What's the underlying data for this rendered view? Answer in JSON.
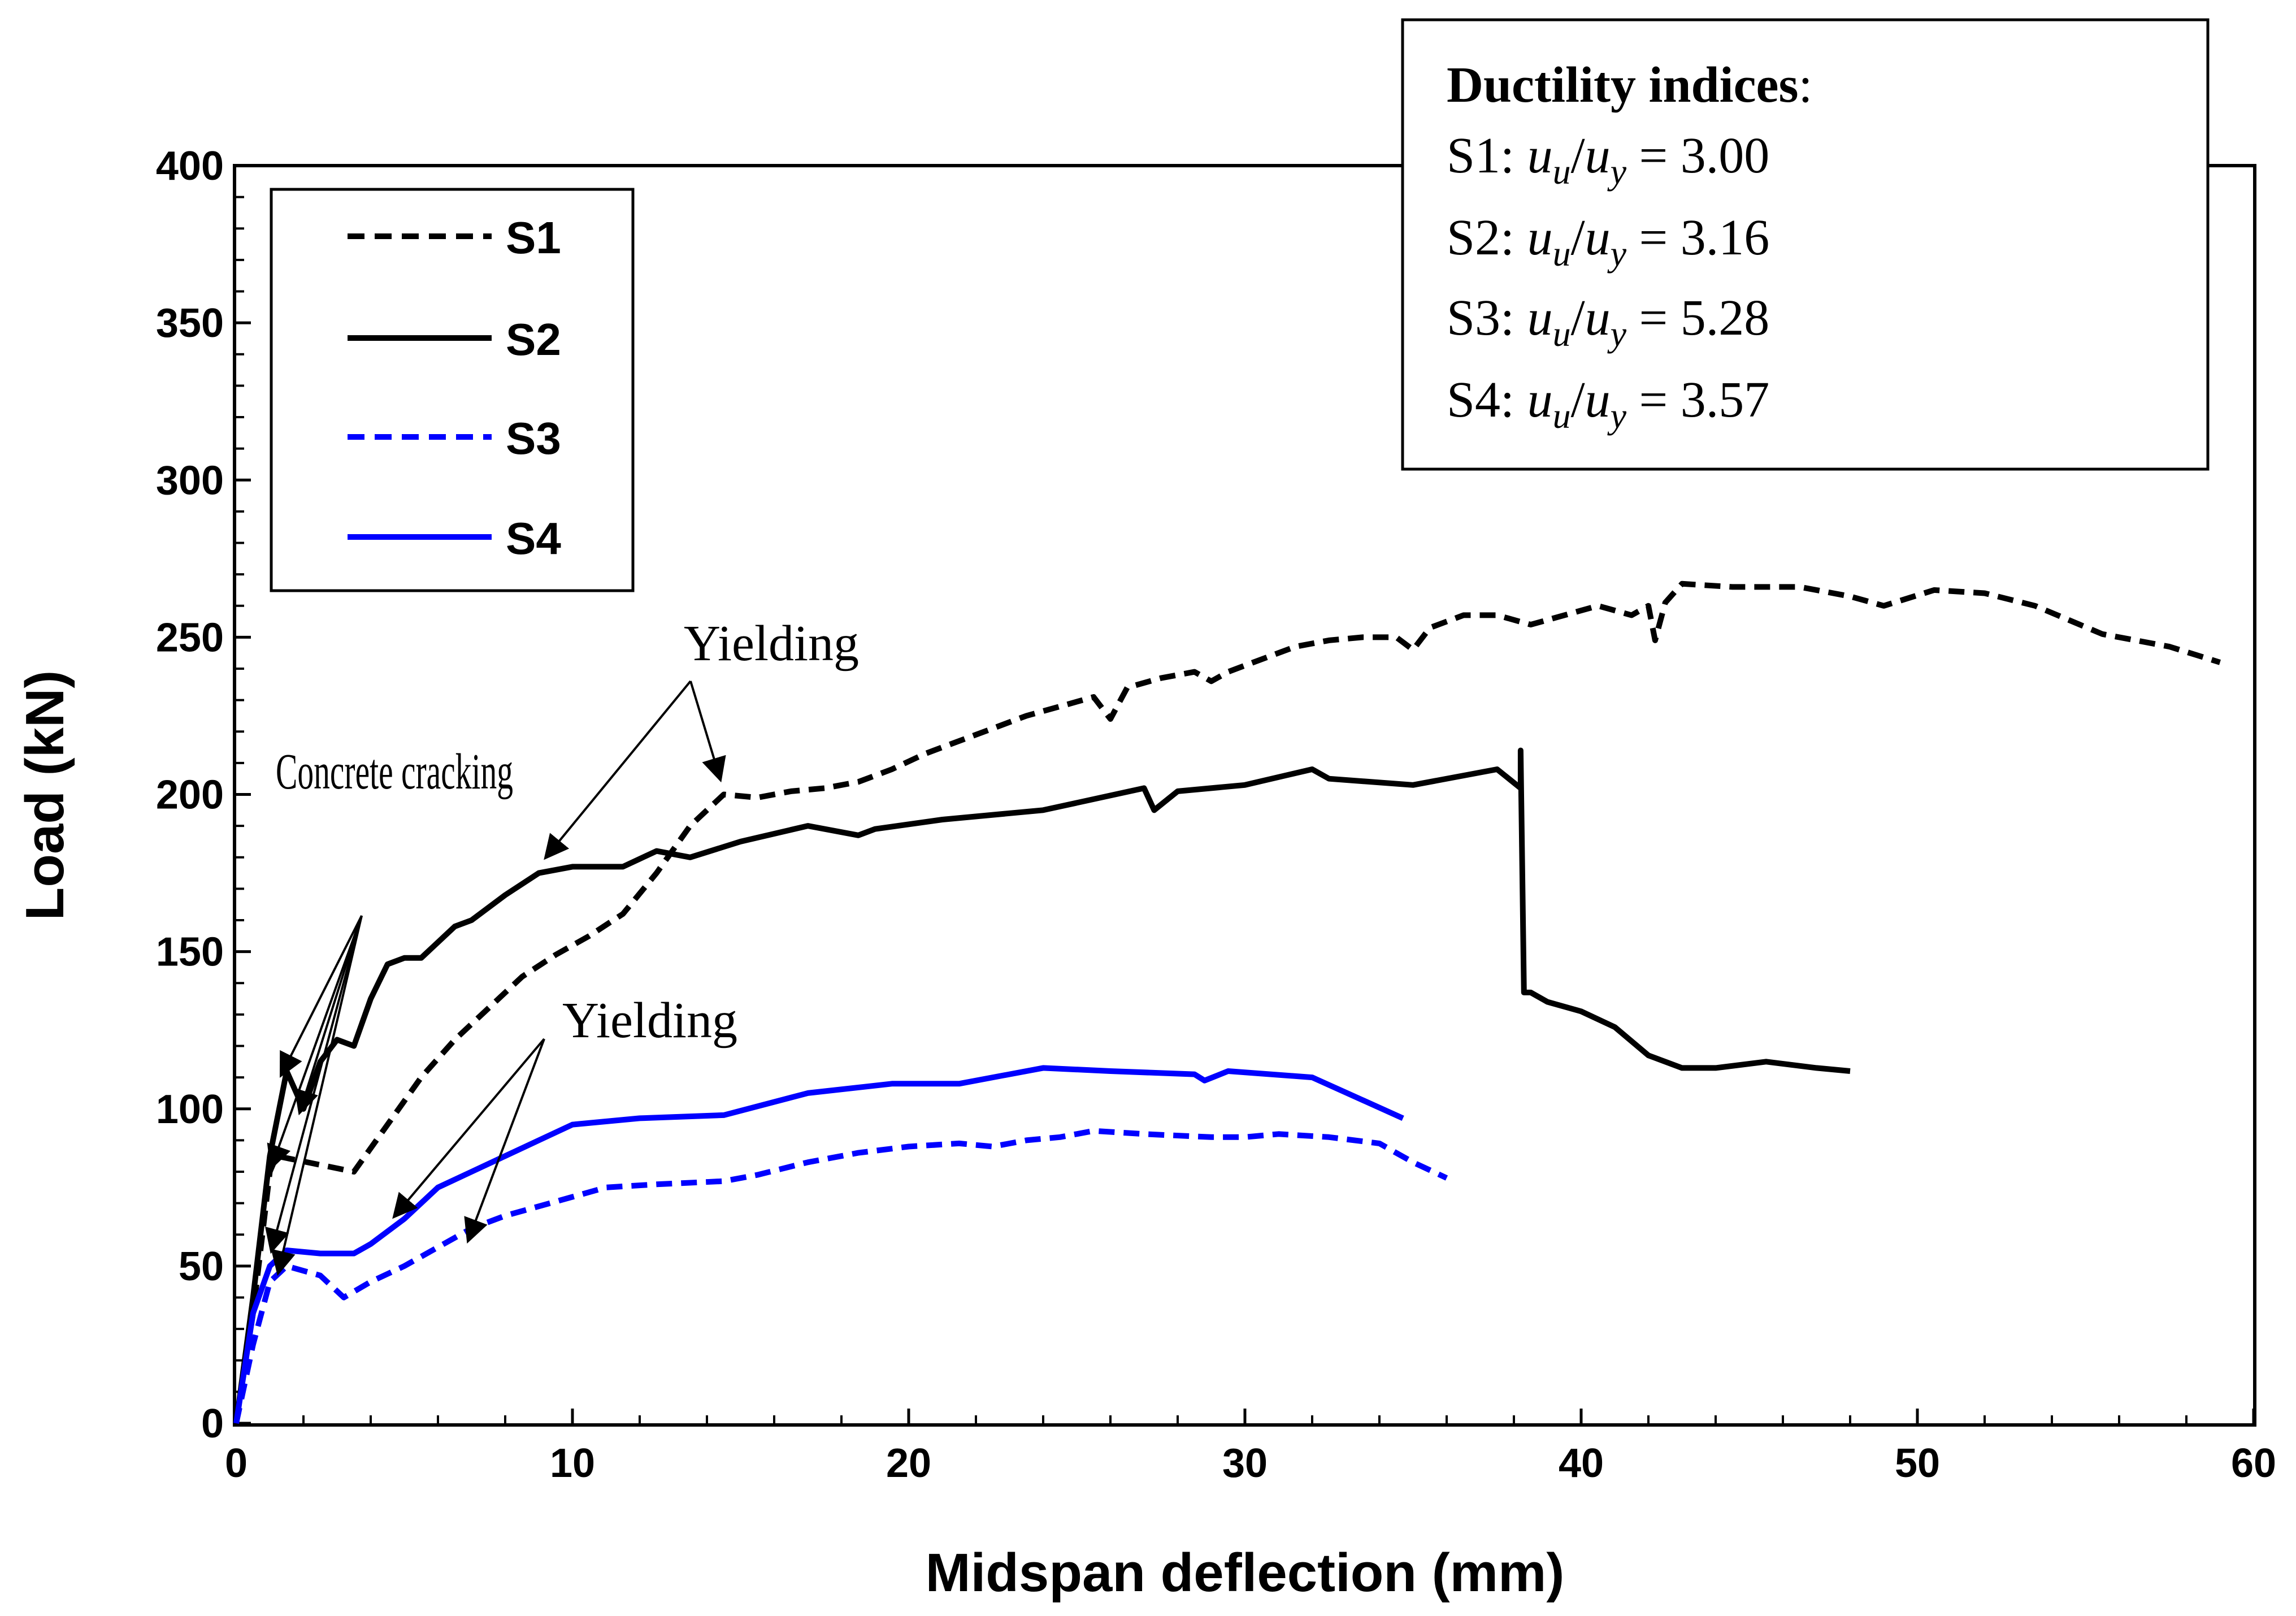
{
  "chart_data": {
    "type": "line",
    "title": "",
    "xlabel": "Midspan deflection (mm)",
    "ylabel": "Load (kN)",
    "xlim": [
      0,
      60
    ],
    "ylim": [
      0,
      400
    ],
    "xticks": [
      0,
      10,
      20,
      30,
      40,
      50,
      60
    ],
    "yticks": [
      0,
      50,
      100,
      150,
      200,
      250,
      300,
      350,
      400
    ],
    "grid": false,
    "legend_position": "top-left",
    "series": [
      {
        "name": "S1",
        "color": "#000000",
        "dashed": true,
        "x": [
          0,
          0.5,
          1.0,
          1.2,
          3.5,
          4.5,
          5.5,
          6.5,
          7.5,
          8.5,
          9.5,
          10.5,
          11.5,
          12.5,
          13.5,
          14.5,
          15.5,
          16.5,
          17.5,
          18.5,
          19.5,
          20.5,
          21.5,
          22.5,
          23.5,
          24.5,
          25.5,
          26.0,
          26.5,
          27.5,
          28.5,
          29.0,
          29.5,
          30.5,
          31.5,
          32.5,
          33.5,
          34.5,
          35.0,
          35.5,
          36.5,
          37.5,
          38.5,
          39.5,
          40.5,
          41.5,
          42.0,
          42.2,
          42.5,
          43.0,
          44.5,
          46.5,
          48.0,
          49.0,
          50.5,
          52.0,
          53.5,
          55.5,
          57.5,
          59.0
        ],
        "y": [
          0,
          35,
          80,
          85,
          80,
          95,
          110,
          122,
          132,
          142,
          149,
          155,
          162,
          175,
          190,
          200,
          199,
          201,
          202,
          204,
          208,
          213,
          217,
          221,
          225,
          228,
          231,
          224,
          234,
          237,
          239,
          236,
          239,
          243,
          247,
          249,
          250,
          250,
          246,
          253,
          257,
          257,
          254,
          257,
          260,
          257,
          260,
          249,
          261,
          267,
          266,
          266,
          263,
          260,
          265,
          264,
          260,
          251,
          247,
          242
        ]
      },
      {
        "name": "S2",
        "color": "#000000",
        "dashed": false,
        "x": [
          0,
          0.5,
          1.0,
          1.5,
          2.0,
          2.5,
          3.0,
          3.5,
          4.0,
          4.5,
          5.0,
          5.5,
          6.5,
          7.0,
          8.0,
          9.0,
          10.0,
          11.5,
          12.5,
          13.5,
          15.0,
          17.0,
          18.5,
          19.0,
          21.0,
          24.0,
          27.0,
          27.3,
          28.0,
          30.0,
          32.0,
          32.5,
          35.0,
          37.5,
          38.2,
          38.2,
          38.3,
          38.5,
          39.0,
          40.0,
          41.0,
          42.0,
          43.0,
          44.0,
          45.5,
          47.0,
          48.0
        ],
        "y": [
          0,
          40,
          85,
          112,
          100,
          115,
          122,
          120,
          135,
          146,
          148,
          148,
          158,
          160,
          168,
          175,
          177,
          177,
          182,
          180,
          185,
          190,
          187,
          189,
          192,
          195,
          202,
          195,
          201,
          203,
          208,
          205,
          203,
          208,
          202,
          214,
          137,
          137,
          134,
          131,
          126,
          117,
          113,
          113,
          115,
          113,
          112
        ]
      },
      {
        "name": "S3",
        "color": "#0000FF",
        "dashed": true,
        "x": [
          0,
          0.5,
          1.0,
          1.5,
          2.5,
          3.2,
          4.0,
          5.0,
          6.0,
          7.0,
          8.0,
          9.0,
          10.0,
          11.0,
          12.5,
          14.5,
          15.5,
          17.0,
          18.5,
          20.0,
          21.5,
          22.5,
          23.5,
          24.5,
          25.5,
          27.0,
          29.0,
          30.0,
          31.0,
          32.5,
          34.0,
          35.0,
          36.0
        ],
        "y": [
          0,
          25,
          45,
          50,
          47,
          40,
          45,
          50,
          56,
          62,
          66,
          69,
          72,
          75,
          76,
          77,
          79,
          83,
          86,
          88,
          89,
          88,
          90,
          91,
          93,
          92,
          91,
          91,
          92,
          91,
          89,
          83,
          78
        ]
      },
      {
        "name": "S4",
        "color": "#0000FF",
        "dashed": false,
        "x": [
          0,
          0.5,
          1.0,
          1.5,
          2.5,
          3.5,
          4.0,
          5.0,
          6.0,
          7.0,
          8.0,
          9.0,
          10.0,
          12.0,
          14.5,
          17.0,
          19.5,
          21.5,
          24.0,
          26.0,
          28.5,
          28.8,
          29.5,
          32.0,
          34.7
        ],
        "y": [
          0,
          35,
          50,
          55,
          54,
          54,
          57,
          65,
          75,
          80,
          85,
          90,
          95,
          97,
          98,
          105,
          108,
          108,
          113,
          112,
          111,
          109,
          112,
          110,
          97
        ]
      }
    ],
    "annotations": {
      "cracking": "Concrete cracking",
      "yielding_upper": "Yielding",
      "yielding_lower": "Yielding"
    },
    "info_box": {
      "title": "Ductility indices",
      "title_suffix": ":",
      "ratio_parts": {
        "u": "u",
        "sub_u": "u",
        "slash": "/",
        "sub_y": "y"
      },
      "rows": [
        {
          "label": "S1: ",
          "value": " = 3.00"
        },
        {
          "label": "S2: ",
          "value": " = 3.16"
        },
        {
          "label": "S3: ",
          "value": " = 5.28"
        },
        {
          "label": "S4: ",
          "value": " = 3.57"
        }
      ]
    }
  }
}
